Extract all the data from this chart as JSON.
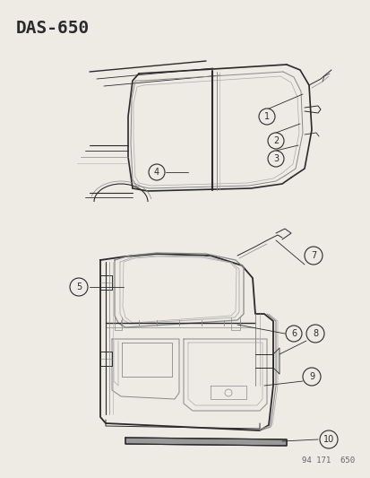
{
  "title": "DAS–650",
  "part_number": "94 171  650",
  "background_color": "#eeebe5",
  "line_color": "#2a2a2a",
  "gray_color": "#888888",
  "light_gray": "#aaaaaa",
  "figsize": [
    4.14,
    5.33
  ],
  "dpi": 100
}
